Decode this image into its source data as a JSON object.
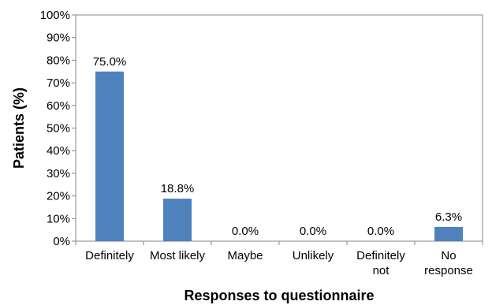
{
  "chart_data": {
    "type": "bar",
    "categories": [
      [
        "Definitely"
      ],
      [
        "Most likely"
      ],
      [
        "Maybe"
      ],
      [
        "Unlikely"
      ],
      [
        "Definitely",
        "not"
      ],
      [
        "No",
        "response"
      ]
    ],
    "values": [
      75.0,
      18.8,
      0.0,
      0.0,
      0.0,
      6.3
    ],
    "data_labels": [
      "75.0%",
      "18.8%",
      "0.0%",
      "0.0%",
      "0.0%",
      "6.3%"
    ],
    "y_ticks": [
      "0%",
      "10%",
      "20%",
      "30%",
      "40%",
      "50%",
      "60%",
      "70%",
      "80%",
      "90%",
      "100%"
    ],
    "xlabel": "Responses to questionnaire",
    "ylabel": "Patients (%)",
    "ylim": [
      0,
      100
    ],
    "grid": false,
    "legend": "none",
    "bar_color": "#4f81bd",
    "axis_color": "#868686"
  }
}
